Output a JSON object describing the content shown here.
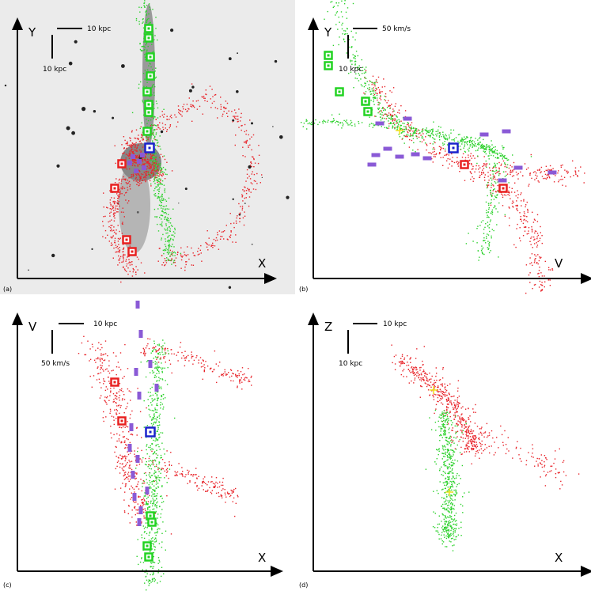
{
  "colors": {
    "red_particles": "#e8242a",
    "green_particles": "#2bd12b",
    "red_marker": "#e82020",
    "green_marker": "#22d322",
    "blue_marker": "#1a22cc",
    "purple_marker": "#8a5ad6",
    "yellow_cross": "#f0e020",
    "axis": "#000000",
    "image_background": "#ebebeb"
  },
  "panels": [
    {
      "id": "a",
      "tag": "(a)",
      "x_label": "X",
      "y_label": "Y",
      "scale_horizontal": "10 kpc",
      "scale_vertical": "10 kpc",
      "has_background_image": true
    },
    {
      "id": "b",
      "tag": "(b)",
      "x_label": "V",
      "y_label": "Y",
      "scale_horizontal": "50 km/s",
      "scale_vertical": "10 kpc",
      "has_background_image": false
    },
    {
      "id": "c",
      "tag": "(c)",
      "x_label": "X",
      "y_label": "V",
      "scale_horizontal": "10 kpc",
      "scale_vertical": "50 km/s",
      "has_background_image": false
    },
    {
      "id": "d",
      "tag": "(d)",
      "x_label": "X",
      "y_label": "Z",
      "scale_horizontal": "10 kpc",
      "scale_vertical": "10 kpc",
      "has_background_image": false
    }
  ]
}
